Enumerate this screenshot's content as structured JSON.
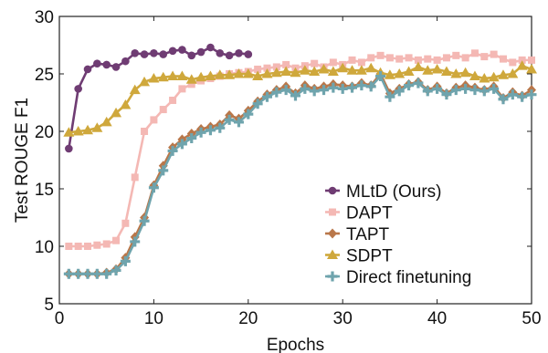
{
  "chart_data": {
    "type": "line",
    "xlabel": "Epochs",
    "ylabel": "Test ROUGE F1",
    "xlim": [
      0,
      50
    ],
    "ylim": [
      5,
      30
    ],
    "xticks": [
      0,
      10,
      20,
      30,
      40,
      50
    ],
    "yticks": [
      5,
      10,
      15,
      20,
      25,
      30
    ],
    "grid": false,
    "legend_position": "bottom-right",
    "series": [
      {
        "name": "MLtD (Ours)",
        "color": "#6f3c73",
        "marker": "circle",
        "x": [
          1,
          2,
          3,
          4,
          5,
          6,
          7,
          8,
          9,
          10,
          11,
          12,
          13,
          14,
          15,
          16,
          17,
          18,
          19,
          20
        ],
        "y": [
          18.5,
          23.7,
          25.4,
          25.9,
          25.8,
          25.6,
          26.1,
          26.8,
          26.7,
          26.8,
          26.7,
          27.0,
          27.1,
          26.6,
          26.9,
          27.3,
          26.8,
          26.6,
          26.8,
          26.7
        ]
      },
      {
        "name": "DAPT",
        "color": "#f4b8b4",
        "marker": "square",
        "x": [
          1,
          2,
          3,
          4,
          5,
          6,
          7,
          8,
          9,
          10,
          11,
          12,
          13,
          14,
          15,
          16,
          17,
          18,
          19,
          20,
          21,
          22,
          23,
          24,
          25,
          26,
          27,
          28,
          29,
          30,
          31,
          32,
          33,
          34,
          35,
          36,
          37,
          38,
          39,
          40,
          41,
          42,
          43,
          44,
          45,
          46,
          47,
          48,
          49,
          50
        ],
        "y": [
          10.0,
          10.0,
          10.0,
          10.1,
          10.2,
          10.5,
          12.0,
          16.0,
          20.0,
          21.0,
          21.9,
          22.7,
          23.7,
          24.1,
          24.4,
          24.6,
          24.8,
          25.0,
          25.1,
          25.2,
          25.4,
          25.5,
          25.6,
          25.8,
          25.5,
          25.7,
          25.9,
          25.6,
          26.0,
          25.8,
          26.2,
          26.0,
          26.4,
          26.6,
          26.4,
          26.3,
          26.4,
          26.2,
          26.3,
          26.2,
          26.4,
          26.6,
          26.4,
          26.8,
          26.5,
          26.7,
          26.3,
          26.0,
          26.2,
          26.2
        ]
      },
      {
        "name": "TAPT",
        "color": "#b9774a",
        "marker": "diamond",
        "x": [
          1,
          2,
          3,
          4,
          5,
          6,
          7,
          8,
          9,
          10,
          11,
          12,
          13,
          14,
          15,
          16,
          17,
          18,
          19,
          20,
          21,
          22,
          23,
          24,
          25,
          26,
          27,
          28,
          29,
          30,
          31,
          32,
          33,
          34,
          35,
          36,
          37,
          38,
          39,
          40,
          41,
          42,
          43,
          44,
          45,
          46,
          47,
          48,
          49,
          50
        ],
        "y": [
          7.6,
          7.6,
          7.6,
          7.6,
          7.7,
          8.0,
          9.0,
          10.8,
          12.5,
          15.3,
          17.0,
          18.6,
          19.3,
          19.8,
          20.2,
          20.4,
          20.6,
          21.4,
          21.1,
          21.8,
          22.6,
          23.2,
          23.6,
          23.9,
          23.3,
          24.0,
          23.7,
          23.9,
          24.1,
          24.0,
          23.9,
          24.2,
          24.0,
          25.0,
          23.3,
          23.7,
          24.1,
          24.3,
          23.6,
          23.9,
          23.3,
          23.8,
          24.0,
          23.8,
          23.6,
          23.9,
          22.9,
          23.4,
          23.1,
          23.6
        ]
      },
      {
        "name": "SDPT",
        "color": "#cfa83c",
        "marker": "triangle",
        "x": [
          1,
          2,
          3,
          4,
          5,
          6,
          7,
          8,
          9,
          10,
          11,
          12,
          13,
          14,
          15,
          16,
          17,
          18,
          19,
          20,
          21,
          22,
          23,
          24,
          25,
          26,
          27,
          28,
          29,
          30,
          31,
          32,
          33,
          34,
          35,
          36,
          37,
          38,
          39,
          40,
          41,
          42,
          43,
          44,
          45,
          46,
          47,
          48,
          49,
          50
        ],
        "y": [
          19.9,
          20.0,
          20.1,
          20.3,
          20.8,
          21.6,
          22.3,
          23.6,
          24.3,
          24.6,
          24.7,
          24.8,
          24.8,
          24.5,
          24.7,
          24.8,
          24.9,
          24.9,
          25.0,
          25.0,
          24.8,
          25.0,
          25.1,
          25.2,
          25.1,
          25.3,
          25.2,
          25.4,
          25.2,
          25.5,
          25.3,
          25.3,
          25.5,
          25.1,
          24.9,
          25.0,
          25.2,
          25.6,
          25.3,
          25.4,
          25.2,
          25.0,
          25.1,
          24.8,
          24.6,
          24.7,
          24.9,
          25.0,
          25.7,
          25.4
        ]
      },
      {
        "name": "Direct finetuning",
        "color": "#6fa4ad",
        "marker": "plus",
        "x": [
          1,
          2,
          3,
          4,
          5,
          6,
          7,
          8,
          9,
          10,
          11,
          12,
          13,
          14,
          15,
          16,
          17,
          18,
          19,
          20,
          21,
          22,
          23,
          24,
          25,
          26,
          27,
          28,
          29,
          30,
          31,
          32,
          33,
          34,
          35,
          36,
          37,
          38,
          39,
          40,
          41,
          42,
          43,
          44,
          45,
          46,
          47,
          48,
          49,
          50
        ],
        "y": [
          7.6,
          7.6,
          7.6,
          7.6,
          7.6,
          7.9,
          8.7,
          10.4,
          12.2,
          15.1,
          16.6,
          18.3,
          18.9,
          19.4,
          19.9,
          20.1,
          20.3,
          21.0,
          20.8,
          21.5,
          22.4,
          23.0,
          23.4,
          23.6,
          23.1,
          23.7,
          23.5,
          23.6,
          23.8,
          23.7,
          23.8,
          24.0,
          23.9,
          24.8,
          23.0,
          23.5,
          24.0,
          24.2,
          23.5,
          23.7,
          23.2,
          23.6,
          23.7,
          23.6,
          23.5,
          23.7,
          22.8,
          23.2,
          23.0,
          23.2
        ]
      }
    ]
  }
}
